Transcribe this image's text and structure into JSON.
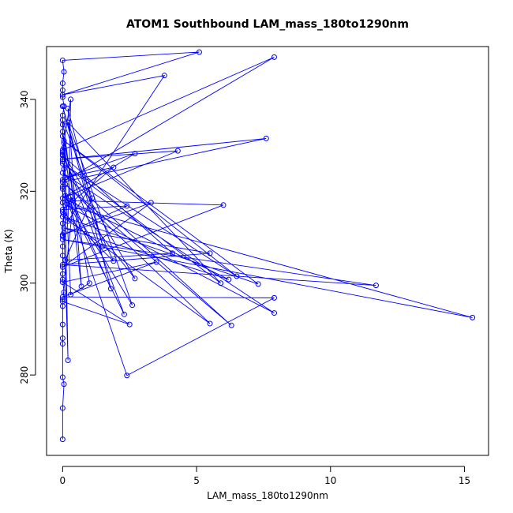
{
  "colors": {
    "series": "#0000ff",
    "axis": "#000000",
    "background": "#ffffff"
  },
  "chart_data": {
    "type": "line",
    "markers": "open-circle",
    "title": "ATOM1 Southbound LAM_mass_180to1290nm",
    "xlabel": "LAM_mass_180to1290nm",
    "ylabel": "Theta (K)",
    "xlim": [
      -0.6,
      15.9
    ],
    "ylim": [
      262.5,
      351.5
    ],
    "xticks": [
      0,
      5,
      10,
      15
    ],
    "yticks": [
      280,
      300,
      320,
      340
    ],
    "grid": false,
    "legend": "none",
    "series": [
      {
        "points": [
          [
            0.0,
            266.0
          ],
          [
            0.0,
            272.8
          ],
          [
            0.05,
            278.0
          ],
          [
            0.0,
            279.5
          ],
          [
            0.0,
            288.0
          ],
          [
            0.0,
            286.8
          ],
          [
            0.0,
            291.0
          ],
          [
            0.0,
            295.0
          ],
          [
            0.0,
            296.5
          ],
          [
            0.05,
            298.0
          ],
          [
            0.0,
            300.8
          ],
          [
            0.0,
            302.0
          ],
          [
            0.0,
            306.0
          ],
          [
            0.0,
            308.0
          ],
          [
            0.05,
            311.0
          ],
          [
            0.0,
            310.2
          ],
          [
            0.0,
            313.0
          ],
          [
            0.05,
            315.0
          ],
          [
            0.0,
            317.5
          ],
          [
            0.0,
            320.5
          ],
          [
            0.0,
            322.5
          ],
          [
            0.05,
            324.8
          ],
          [
            0.0,
            326.5
          ],
          [
            0.0,
            328.0
          ],
          [
            0.05,
            330.5
          ],
          [
            0.0,
            332.0
          ],
          [
            0.0,
            334.5
          ],
          [
            0.0,
            336.5
          ],
          [
            0.05,
            338.5
          ],
          [
            0.0,
            340.5
          ],
          [
            0.0,
            342.0
          ],
          [
            0.0,
            343.5
          ],
          [
            0.05,
            346.0
          ],
          [
            0.0,
            348.5
          ],
          [
            5.1,
            350.3
          ],
          [
            0.0,
            341.0
          ],
          [
            3.8,
            345.2
          ],
          [
            0.2,
            313.5
          ],
          [
            0.3,
            340.0
          ],
          [
            0.0,
            329.0
          ],
          [
            7.9,
            349.2
          ],
          [
            0.0,
            322.0
          ],
          [
            7.6,
            331.5
          ],
          [
            0.0,
            327.0
          ],
          [
            4.3,
            328.8
          ],
          [
            0.0,
            318.5
          ],
          [
            2.7,
            328.2
          ],
          [
            0.1,
            323.0
          ],
          [
            1.9,
            325.2
          ],
          [
            0.0,
            316.0
          ],
          [
            2.4,
            316.8
          ],
          [
            0.0,
            310.5
          ],
          [
            3.3,
            317.5
          ],
          [
            0.0,
            303.5
          ],
          [
            6.0,
            317.0
          ],
          [
            0.2,
            318.0
          ],
          [
            6.2,
            300.8
          ],
          [
            0.05,
            312.0
          ],
          [
            5.5,
            306.5
          ],
          [
            0.0,
            304.0
          ],
          [
            11.7,
            299.5
          ],
          [
            0.0,
            309.5
          ],
          [
            15.3,
            292.5
          ],
          [
            0.1,
            317.0
          ],
          [
            7.9,
            293.5
          ],
          [
            0.0,
            324.0
          ],
          [
            6.3,
            290.8
          ],
          [
            0.1,
            321.5
          ],
          [
            5.5,
            291.2
          ],
          [
            0.0,
            314.5
          ],
          [
            7.3,
            299.8
          ],
          [
            0.05,
            331.0
          ],
          [
            6.5,
            301.5
          ],
          [
            0.0,
            326.0
          ],
          [
            5.9,
            300.0
          ],
          [
            0.2,
            335.0
          ],
          [
            2.6,
            295.2
          ],
          [
            0.1,
            319.0
          ],
          [
            2.3,
            293.2
          ],
          [
            0.0,
            328.5
          ],
          [
            2.7,
            301.0
          ],
          [
            0.3,
            318.8
          ],
          [
            1.8,
            298.8
          ],
          [
            0.0,
            338.5
          ],
          [
            1.5,
            308.0
          ],
          [
            0.2,
            338.0
          ],
          [
            0.7,
            299.3
          ],
          [
            0.0,
            333.0
          ],
          [
            1.0,
            300.0
          ],
          [
            0.3,
            297.5
          ],
          [
            0.05,
            329.5
          ],
          [
            0.2,
            283.2
          ],
          [
            0.0,
            321.0
          ],
          [
            2.4,
            279.9
          ],
          [
            7.9,
            296.8
          ],
          [
            0.0,
            297.0
          ],
          [
            3.5,
            304.6
          ],
          [
            0.0,
            300.2
          ],
          [
            2.5,
            291.0
          ],
          [
            0.0,
            296.0
          ],
          [
            0.4,
            318.0
          ],
          [
            0.0,
            335.5
          ],
          [
            1.1,
            318.5
          ],
          [
            0.1,
            305.0
          ],
          [
            4.1,
            306.5
          ],
          [
            0.0,
            327.8
          ],
          [
            1.9,
            304.8
          ],
          [
            0.0,
            315.5
          ]
        ]
      }
    ]
  }
}
